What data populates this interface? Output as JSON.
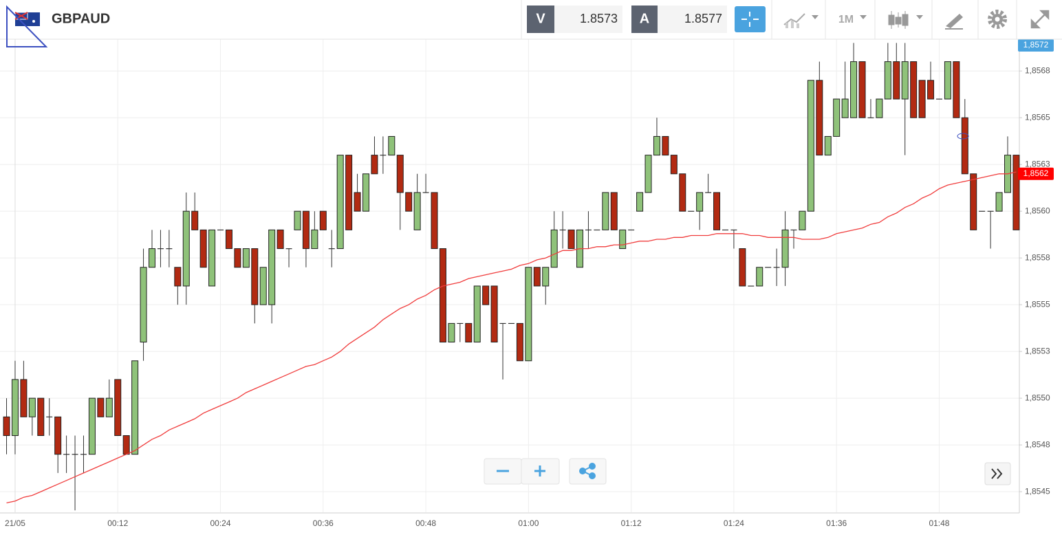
{
  "toolbar": {
    "symbol": "GBPAUD",
    "bid_label": "V",
    "bid": 1.8573,
    "ask_label": "A",
    "ask": 1.8577,
    "timeframe": "1M"
  },
  "chart_data": {
    "type": "candlestick",
    "categories": [
      null,
      "21/05",
      null,
      null,
      null,
      null,
      null,
      null,
      null,
      null,
      null,
      null,
      null,
      "00:12",
      null,
      null,
      null,
      null,
      null,
      null,
      null,
      null,
      null,
      null,
      null,
      "00:24",
      null,
      null,
      null,
      null,
      null,
      null,
      null,
      null,
      null,
      null,
      null,
      "00:36",
      null,
      null,
      null,
      null,
      null,
      null,
      null,
      null,
      null,
      null,
      null,
      "00:48",
      null,
      null,
      null,
      null,
      null,
      null,
      null,
      null,
      null,
      null,
      null,
      "01:00",
      null,
      null,
      null,
      null,
      null,
      null,
      null,
      null,
      null,
      null,
      null,
      "01:12",
      null,
      null,
      null,
      null,
      null,
      null,
      null,
      null,
      null,
      null,
      null,
      "01:24",
      null,
      null,
      null,
      null,
      null,
      null,
      null,
      null,
      null,
      null,
      null,
      "01:36",
      null,
      null,
      null,
      null,
      null,
      null,
      null,
      null,
      null,
      null,
      null,
      "01:48",
      null,
      null,
      null,
      null,
      null,
      null,
      null,
      null,
      null
    ],
    "open": [
      1.8549,
      1.8548,
      1.8551,
      1.8549,
      1.855,
      1.8549,
      1.8549,
      1.8547,
      1.8547,
      1.8547,
      1.8547,
      1.855,
      1.8549,
      1.8551,
      1.8548,
      1.8547,
      1.8553,
      1.8557,
      1.8558,
      1.8558,
      1.8557,
      1.8556,
      1.856,
      1.8559,
      1.8556,
      1.8559,
      1.8559,
      1.8558,
      1.8557,
      1.8558,
      1.8555,
      1.8555,
      1.8559,
      1.8558,
      1.8559,
      1.856,
      1.8558,
      1.856,
      1.8558,
      1.8558,
      1.8563,
      1.8561,
      1.856,
      1.8563,
      1.8563,
      1.8563,
      1.8563,
      1.8561,
      1.8559,
      1.8561,
      1.8561,
      1.8558,
      1.8553,
      1.8554,
      1.8554,
      1.8553,
      1.8556,
      1.8556,
      1.8554,
      1.8554,
      1.8554,
      1.8552,
      1.8557,
      1.8556,
      1.8557,
      1.8559,
      1.8559,
      1.8557,
      1.8559,
      1.8559,
      1.8559,
      1.8561,
      1.8558,
      1.8559,
      1.856,
      1.8561,
      1.8563,
      1.8564,
      1.8563,
      1.8562,
      1.856,
      1.856,
      1.8561,
      1.8561,
      1.8559,
      1.8559,
      1.8558,
      1.8556,
      1.8556,
      1.8557,
      1.8557,
      1.8557,
      1.8559,
      1.8559,
      1.856,
      1.8567,
      1.8563,
      1.8564,
      1.8565,
      1.8565,
      1.8568,
      1.8565,
      1.8565,
      1.8566,
      1.8568,
      1.8566,
      1.8568,
      1.8567,
      1.8567,
      1.8566,
      1.8566,
      1.8568,
      1.8565,
      1.8562,
      1.856,
      1.856,
      1.856,
      1.8561,
      1.8563
    ],
    "high": [
      1.855,
      1.8552,
      1.8552,
      1.855,
      1.855,
      1.855,
      1.8549,
      1.8548,
      1.8548,
      1.8548,
      1.855,
      1.855,
      1.8551,
      1.8551,
      1.8548,
      1.8552,
      1.8558,
      1.8559,
      1.8559,
      1.8559,
      1.8557,
      1.8561,
      1.8561,
      1.8559,
      1.8559,
      1.8559,
      1.8559,
      1.8558,
      1.8558,
      1.8558,
      1.8557,
      1.8559,
      1.8559,
      1.8558,
      1.856,
      1.856,
      1.856,
      1.856,
      1.8559,
      1.8563,
      1.8563,
      1.8562,
      1.8562,
      1.8564,
      1.8564,
      1.8564,
      1.8563,
      1.8561,
      1.8562,
      1.8562,
      1.8561,
      1.8558,
      1.8554,
      1.8554,
      1.8554,
      1.8556,
      1.8556,
      1.8556,
      1.8554,
      1.8554,
      1.8554,
      1.8557,
      1.8557,
      1.8557,
      1.856,
      1.856,
      1.8559,
      1.8559,
      1.856,
      1.8559,
      1.8561,
      1.8561,
      1.8559,
      1.8559,
      1.8561,
      1.8563,
      1.8565,
      1.8564,
      1.8563,
      1.8562,
      1.856,
      1.8561,
      1.8562,
      1.8561,
      1.8559,
      1.8559,
      1.8558,
      1.8556,
      1.8557,
      1.8557,
      1.8558,
      1.856,
      1.8559,
      1.856,
      1.8567,
      1.8568,
      1.8564,
      1.8566,
      1.8568,
      1.8569,
      1.8568,
      1.8566,
      1.8566,
      1.8569,
      1.8569,
      1.8569,
      1.8568,
      1.8567,
      1.8568,
      1.8566,
      1.8568,
      1.8568,
      1.8566,
      1.8562,
      1.856,
      1.856,
      1.8561,
      1.8564,
      1.8563
    ],
    "low": [
      1.8547,
      1.8547,
      1.8549,
      1.8548,
      1.8548,
      1.8548,
      1.8546,
      1.8546,
      1.8544,
      1.8546,
      1.8547,
      1.8549,
      1.8549,
      1.8548,
      1.8547,
      1.8547,
      1.8552,
      1.8557,
      1.8557,
      1.8557,
      1.8555,
      1.8555,
      1.8559,
      1.8557,
      1.8556,
      1.8559,
      1.8558,
      1.8557,
      1.8557,
      1.8554,
      1.8555,
      1.8554,
      1.8558,
      1.8557,
      1.8559,
      1.8557,
      1.8558,
      1.8559,
      1.8557,
      1.8558,
      1.8559,
      1.856,
      1.856,
      1.8562,
      1.8562,
      1.8563,
      1.8559,
      1.856,
      1.8559,
      1.8561,
      1.8558,
      1.8553,
      1.8553,
      1.8553,
      1.8553,
      1.8553,
      1.8555,
      1.8553,
      1.8551,
      1.8554,
      1.8552,
      1.8552,
      1.8556,
      1.8555,
      1.8557,
      1.8558,
      1.8558,
      1.8557,
      1.8558,
      1.8559,
      1.8559,
      1.8559,
      1.8558,
      1.8559,
      1.856,
      1.8561,
      1.8563,
      1.8563,
      1.8562,
      1.856,
      1.856,
      1.8559,
      1.8561,
      1.8559,
      1.8559,
      1.8558,
      1.8556,
      1.8556,
      1.8556,
      1.8557,
      1.8556,
      1.8556,
      1.8558,
      1.8559,
      1.856,
      1.8563,
      1.8563,
      1.8564,
      1.8565,
      1.8565,
      1.8565,
      1.8565,
      1.8565,
      1.8566,
      1.8566,
      1.8563,
      1.8565,
      1.8565,
      1.8566,
      1.8566,
      1.8566,
      1.8565,
      1.8562,
      1.8559,
      1.856,
      1.8558,
      1.856,
      1.8561,
      1.8559
    ],
    "close": [
      1.8548,
      1.8551,
      1.8549,
      1.855,
      1.8548,
      1.8549,
      1.8547,
      1.8547,
      1.8547,
      1.8547,
      1.855,
      1.8549,
      1.855,
      1.8548,
      1.8547,
      1.8552,
      1.8557,
      1.8558,
      1.8558,
      1.8558,
      1.8556,
      1.856,
      1.8559,
      1.8557,
      1.8559,
      1.8559,
      1.8558,
      1.8557,
      1.8558,
      1.8555,
      1.8557,
      1.8559,
      1.8558,
      1.8558,
      1.856,
      1.8558,
      1.8559,
      1.8559,
      1.8558,
      1.8563,
      1.8559,
      1.856,
      1.8562,
      1.8562,
      1.8563,
      1.8564,
      1.8561,
      1.856,
      1.8561,
      1.8561,
      1.8558,
      1.8553,
      1.8554,
      1.8554,
      1.8553,
      1.8556,
      1.8555,
      1.8553,
      1.8554,
      1.8554,
      1.8552,
      1.8557,
      1.8556,
      1.8557,
      1.8559,
      1.8559,
      1.8558,
      1.8559,
      1.8559,
      1.8559,
      1.8561,
      1.8559,
      1.8559,
      1.8559,
      1.8561,
      1.8563,
      1.8564,
      1.8563,
      1.8562,
      1.856,
      1.856,
      1.8561,
      1.8561,
      1.8559,
      1.8559,
      1.8559,
      1.8556,
      1.8556,
      1.8557,
      1.8557,
      1.8557,
      1.8559,
      1.8559,
      1.856,
      1.8567,
      1.8563,
      1.8564,
      1.8566,
      1.8566,
      1.8568,
      1.8565,
      1.8565,
      1.8566,
      1.8568,
      1.8566,
      1.8568,
      1.8565,
      1.8565,
      1.8566,
      1.8566,
      1.8568,
      1.8565,
      1.8562,
      1.8559,
      1.856,
      1.856,
      1.8561,
      1.8563,
      1.8559
    ],
    "up_color": "#8fc27a",
    "down_color": "#b22a12",
    "moving_average": {
      "color": "#f03c3c",
      "values": [
        1.85444,
        1.85445,
        1.85447,
        1.85448,
        1.8545,
        1.85452,
        1.85454,
        1.85456,
        1.85458,
        1.8546,
        1.85462,
        1.85464,
        1.85466,
        1.85468,
        1.8547,
        1.85472,
        1.85475,
        1.85478,
        1.8548,
        1.85483,
        1.85485,
        1.85487,
        1.85489,
        1.85492,
        1.85494,
        1.85496,
        1.85498,
        1.855,
        1.85503,
        1.85505,
        1.85507,
        1.85509,
        1.85511,
        1.85513,
        1.85515,
        1.85517,
        1.85518,
        1.8552,
        1.85522,
        1.85525,
        1.85529,
        1.85532,
        1.85535,
        1.85538,
        1.85542,
        1.85545,
        1.85548,
        1.8555,
        1.85553,
        1.85555,
        1.85558,
        1.8556,
        1.85561,
        1.85562,
        1.85564,
        1.85565,
        1.85566,
        1.85567,
        1.85568,
        1.85569,
        1.85571,
        1.85572,
        1.85574,
        1.85575,
        1.85577,
        1.85579,
        1.85579,
        1.8558,
        1.8558,
        1.85581,
        1.85581,
        1.85582,
        1.85582,
        1.85583,
        1.85584,
        1.85584,
        1.85585,
        1.85585,
        1.85586,
        1.85586,
        1.85587,
        1.85587,
        1.85587,
        1.85588,
        1.85588,
        1.85588,
        1.85588,
        1.85587,
        1.85587,
        1.85586,
        1.85586,
        1.85586,
        1.85586,
        1.85585,
        1.85585,
        1.85585,
        1.85586,
        1.85588,
        1.85589,
        1.8559,
        1.85591,
        1.85593,
        1.85594,
        1.85597,
        1.85599,
        1.85602,
        1.85604,
        1.85607,
        1.85609,
        1.85612,
        1.85614,
        1.85615,
        1.85616,
        1.85617,
        1.85618,
        1.85619,
        1.8562,
        1.8562,
        1.85621
      ]
    },
    "ylim": [
      1.85439,
      1.85692
    ],
    "yticks": [
      {
        "value": 1.85675,
        "label": "1,8568"
      },
      {
        "value": 1.8565,
        "label": "1,8565"
      },
      {
        "value": 1.85625,
        "label": "1,8563"
      },
      {
        "value": 1.856,
        "label": "1,8560"
      },
      {
        "value": 1.85575,
        "label": "1,8558"
      },
      {
        "value": 1.8555,
        "label": "1,8555"
      },
      {
        "value": 1.85525,
        "label": "1,8553"
      },
      {
        "value": 1.855,
        "label": "1,8550"
      },
      {
        "value": 1.85475,
        "label": "1,8548"
      },
      {
        "value": 1.8545,
        "label": "1,8545"
      }
    ],
    "grid": true,
    "price_labels": [
      {
        "value": 1.8572,
        "label": "1,8572",
        "color": "#4aa3df"
      },
      {
        "value": 1.8562,
        "label": "1,8562",
        "color": "#ff0000"
      }
    ]
  }
}
